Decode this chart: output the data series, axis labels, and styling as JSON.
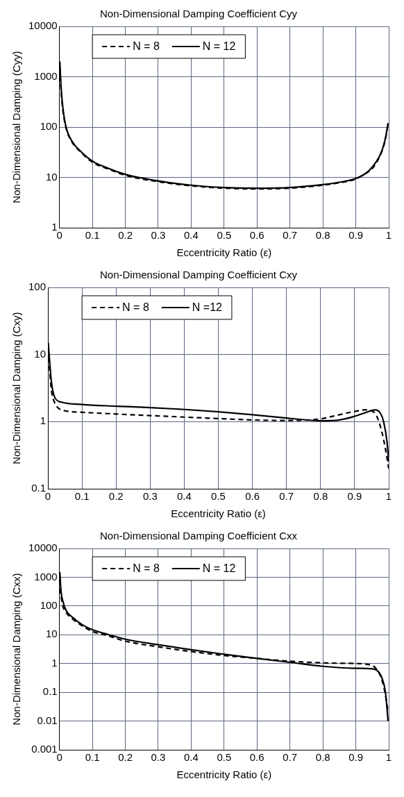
{
  "chart_data": [
    {
      "type": "line",
      "title": "Non-Dimensional Damping Coefficient Cyy",
      "xlabel": "Eccentricity Ratio (ε)",
      "ylabel": "Non-Dimensional Damping (Cyy)",
      "xlim": [
        0,
        1
      ],
      "xticks": [
        0,
        0.1,
        0.2,
        0.3,
        0.4,
        0.5,
        0.6,
        0.7,
        0.8,
        0.9,
        1
      ],
      "ylim": [
        1,
        10000
      ],
      "yticks": [
        1,
        10,
        100,
        1000,
        10000
      ],
      "log": "y",
      "grid": true,
      "legend": "top left",
      "marker": "none",
      "series": [
        {
          "name": "N = 8",
          "color": "#000000",
          "line_style": "dashed",
          "x": [
            0.001,
            0.005,
            0.01,
            0.02,
            0.04,
            0.06,
            0.1,
            0.15,
            0.2,
            0.3,
            0.4,
            0.5,
            0.6,
            0.7,
            0.8,
            0.85,
            0.9,
            0.92,
            0.95,
            0.97,
            0.98,
            0.99,
            0.998
          ],
          "values": [
            1500,
            500,
            220,
            95,
            48,
            34,
            20,
            14.5,
            11,
            8.2,
            6.8,
            6.1,
            5.9,
            6.1,
            7,
            7.8,
            9.3,
            11,
            15,
            24,
            34,
            58,
            115
          ]
        },
        {
          "name": "N = 12",
          "color": "#000000",
          "line_style": "solid",
          "x": [
            0.001,
            0.005,
            0.01,
            0.02,
            0.04,
            0.06,
            0.1,
            0.15,
            0.2,
            0.3,
            0.4,
            0.5,
            0.6,
            0.7,
            0.8,
            0.85,
            0.9,
            0.93,
            0.95,
            0.97,
            0.98,
            0.99,
            0.998
          ],
          "values": [
            2000,
            600,
            250,
            100,
            50,
            35,
            21,
            15,
            11.5,
            8.5,
            7,
            6.3,
            6.1,
            6.3,
            7.2,
            8,
            9.5,
            12,
            16,
            25,
            35,
            60,
            120
          ]
        }
      ]
    },
    {
      "type": "line",
      "title": "Non-Dimensional Damping Coefficient Cxy",
      "xlabel": "Eccentricity Ratio (ε)",
      "ylabel": "Non-Dimensional Damping (Cxy)",
      "xlim": [
        0,
        1
      ],
      "xticks": [
        0,
        0.1,
        0.2,
        0.3,
        0.4,
        0.5,
        0.6,
        0.7,
        0.8,
        0.9,
        1
      ],
      "ylim": [
        0.1,
        100
      ],
      "yticks": [
        0.1,
        1,
        10,
        100
      ],
      "log": "y",
      "grid": true,
      "legend": "top left",
      "marker": "none",
      "series": [
        {
          "name": "N = 8",
          "color": "#000000",
          "line_style": "dashed",
          "x": [
            0.001,
            0.005,
            0.01,
            0.02,
            0.03,
            0.05,
            0.1,
            0.2,
            0.3,
            0.4,
            0.5,
            0.6,
            0.7,
            0.8,
            0.85,
            0.9,
            0.93,
            0.95,
            0.965,
            0.98,
            0.99,
            1
          ],
          "values": [
            12,
            6,
            3,
            1.9,
            1.6,
            1.45,
            1.38,
            1.3,
            1.23,
            1.17,
            1.11,
            1.06,
            1.04,
            1.1,
            1.25,
            1.42,
            1.5,
            1.45,
            1.2,
            0.7,
            0.4,
            0.2
          ]
        },
        {
          "name": "N =12",
          "color": "#000000",
          "line_style": "solid",
          "x": [
            0.001,
            0.005,
            0.01,
            0.02,
            0.04,
            0.1,
            0.2,
            0.3,
            0.4,
            0.5,
            0.6,
            0.7,
            0.75,
            0.8,
            0.85,
            0.9,
            0.93,
            0.96,
            0.975,
            0.985,
            0.995,
            1
          ],
          "values": [
            15,
            8,
            4,
            2.3,
            1.95,
            1.8,
            1.7,
            1.62,
            1.52,
            1.4,
            1.27,
            1.13,
            1.07,
            1.03,
            1.05,
            1.2,
            1.35,
            1.5,
            1.35,
            1,
            0.5,
            0.25
          ]
        }
      ]
    },
    {
      "type": "line",
      "title": "Non-Dimensional Damping Coefficient Cxx",
      "xlabel": "Eccentricity Ratio (ε)",
      "ylabel": "Non-Dimensional Damping (Cxx)",
      "xlim": [
        0,
        1
      ],
      "xticks": [
        0,
        0.1,
        0.2,
        0.3,
        0.4,
        0.5,
        0.6,
        0.7,
        0.8,
        0.9,
        1
      ],
      "ylim": [
        0.001,
        10000
      ],
      "yticks": [
        0.001,
        0.01,
        0.1,
        1,
        10,
        100,
        1000,
        10000
      ],
      "log": "y",
      "grid": true,
      "legend": "top left",
      "marker": "none",
      "series": [
        {
          "name": "N = 8",
          "color": "#000000",
          "line_style": "dashed",
          "x": [
            0.001,
            0.005,
            0.01,
            0.02,
            0.04,
            0.07,
            0.1,
            0.15,
            0.2,
            0.3,
            0.4,
            0.5,
            0.6,
            0.7,
            0.8,
            0.9,
            0.93,
            0.96,
            0.98,
            0.99,
            0.998
          ],
          "values": [
            400,
            200,
            100,
            60,
            35,
            20,
            13,
            9,
            6,
            3.8,
            2.6,
            1.9,
            1.5,
            1.2,
            1.05,
            1,
            0.95,
            0.7,
            0.25,
            0.08,
            0.02
          ]
        },
        {
          "name": "N = 12",
          "color": "#000000",
          "line_style": "solid",
          "x": [
            0.001,
            0.005,
            0.01,
            0.02,
            0.04,
            0.07,
            0.1,
            0.15,
            0.2,
            0.3,
            0.4,
            0.5,
            0.6,
            0.7,
            0.8,
            0.9,
            0.95,
            0.97,
            0.98,
            0.99,
            0.998
          ],
          "values": [
            1500,
            300,
            150,
            70,
            40,
            22,
            15,
            10,
            7,
            4.5,
            3,
            2.1,
            1.5,
            1.1,
            0.8,
            0.68,
            0.65,
            0.5,
            0.3,
            0.1,
            0.01
          ]
        }
      ]
    }
  ]
}
